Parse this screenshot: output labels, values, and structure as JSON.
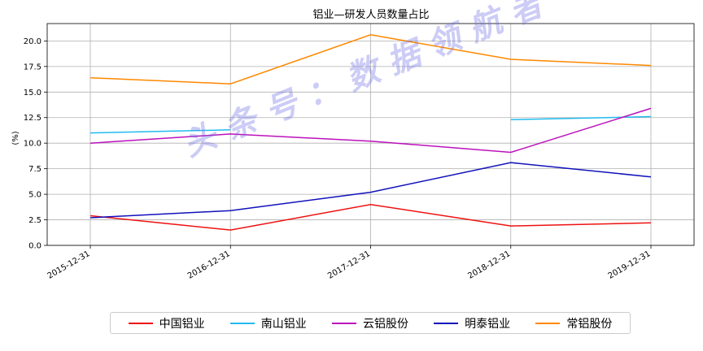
{
  "chart_data": {
    "type": "line",
    "title": "铝业—研发人员数量占比",
    "ylabel": "(%)",
    "xlabel": "",
    "categories": [
      "2015-12-31",
      "2016-12-31",
      "2017-12-31",
      "2018-12-31",
      "2019-12-31"
    ],
    "ylim": [
      0,
      21.7
    ],
    "yticks": [
      "0.0",
      "2.5",
      "5.0",
      "7.5",
      "10.0",
      "12.5",
      "15.0",
      "17.5",
      "20.0"
    ],
    "grid": true,
    "legend_position": "bottom",
    "series": [
      {
        "name": "中国铝业",
        "color": "#ee1111",
        "values": [
          2.9,
          1.5,
          4.0,
          1.9,
          2.2
        ]
      },
      {
        "name": "南山铝业",
        "color": "#22bbee",
        "values": [
          11.0,
          11.3,
          null,
          12.3,
          12.6
        ]
      },
      {
        "name": "云铝股份",
        "color": "#bb11bb",
        "values": [
          10.0,
          10.9,
          10.2,
          9.1,
          13.4
        ]
      },
      {
        "name": "明泰铝业",
        "color": "#1111bb",
        "values": [
          2.7,
          3.4,
          5.2,
          8.1,
          6.7
        ]
      },
      {
        "name": "常铝股份",
        "color": "#ff8800",
        "values": [
          16.4,
          15.8,
          20.6,
          18.2,
          17.6
        ]
      }
    ]
  },
  "watermark": "头条号：数据领航者"
}
